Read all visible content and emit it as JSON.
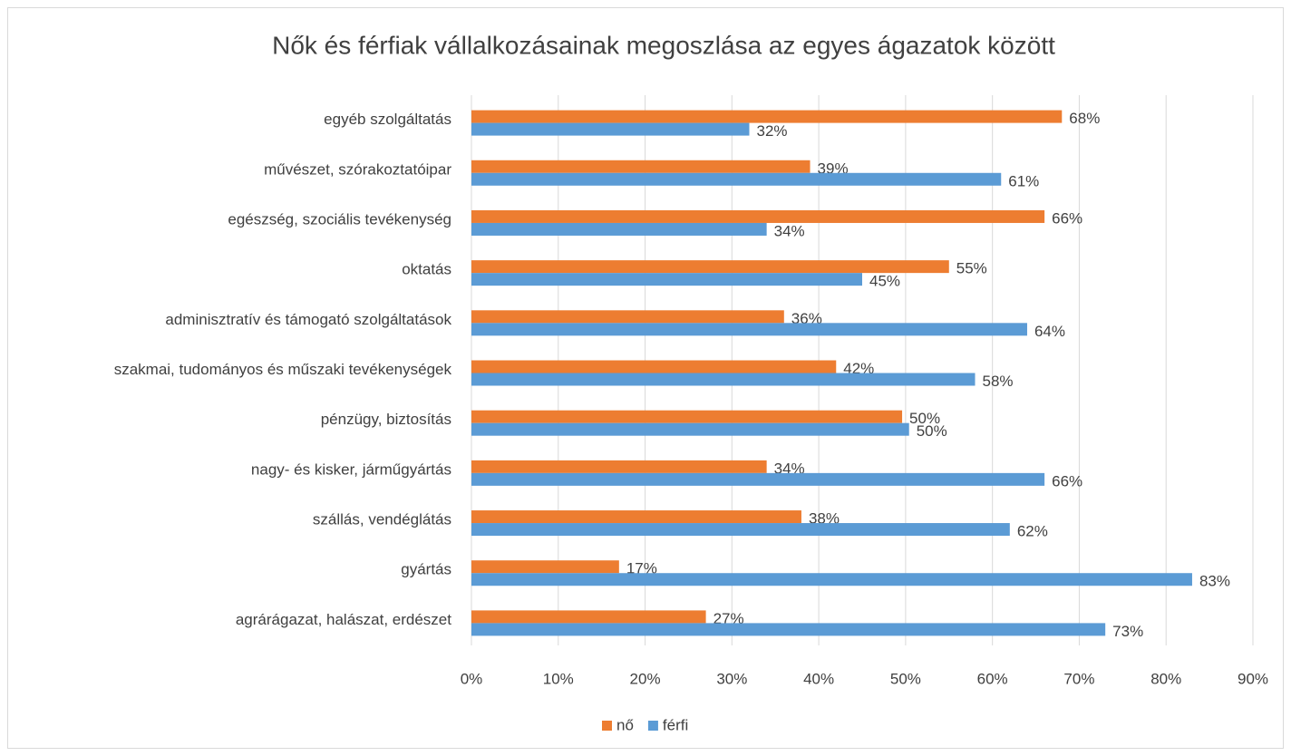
{
  "chart_data": {
    "type": "bar",
    "orientation": "horizontal",
    "title": "Nők és férfiak vállalkozásainak megoszlása az egyes ágazatok között",
    "categories": [
      "egyéb szolgáltatás",
      "művészet, szórakoztatóipar",
      "egészség, szociális tevékenység",
      "oktatás",
      "adminisztratív és támogató szolgáltatások",
      "szakmai, tudományos és műszaki tevékenységek",
      "pénzügy, biztosítás",
      "nagy- és kisker, járműgyártás",
      "szállás, vendéglátás",
      "gyártás",
      "agrárágazat, halászat, erdészet"
    ],
    "series": [
      {
        "name": "nő",
        "color": "#ed7d31",
        "values": [
          68,
          39,
          66,
          55,
          36,
          42,
          49.6,
          34,
          38,
          17,
          27
        ],
        "value_labels": [
          "68%",
          "39%",
          "66%",
          "55%",
          "36%",
          "42%",
          "50%",
          "34%",
          "38%",
          "17%",
          "27%"
        ]
      },
      {
        "name": "férfi",
        "color": "#5b9bd5",
        "values": [
          32,
          61,
          34,
          45,
          64,
          58,
          50.4,
          66,
          62,
          83,
          73
        ],
        "value_labels": [
          "32%",
          "61%",
          "34%",
          "45%",
          "64%",
          "58%",
          "50%",
          "66%",
          "62%",
          "83%",
          "73%"
        ]
      }
    ],
    "xlim": [
      0,
      90
    ],
    "xticks": [
      {
        "value": 0,
        "label": "0%"
      },
      {
        "value": 10,
        "label": "10%"
      },
      {
        "value": 20,
        "label": "20%"
      },
      {
        "value": 30,
        "label": "30%"
      },
      {
        "value": 40,
        "label": "40%"
      },
      {
        "value": 50,
        "label": "50%"
      },
      {
        "value": 60,
        "label": "60%"
      },
      {
        "value": 70,
        "label": "70%"
      },
      {
        "value": 80,
        "label": "80%"
      },
      {
        "value": 90,
        "label": "90%"
      }
    ],
    "grid": true,
    "legend": "bottom"
  }
}
